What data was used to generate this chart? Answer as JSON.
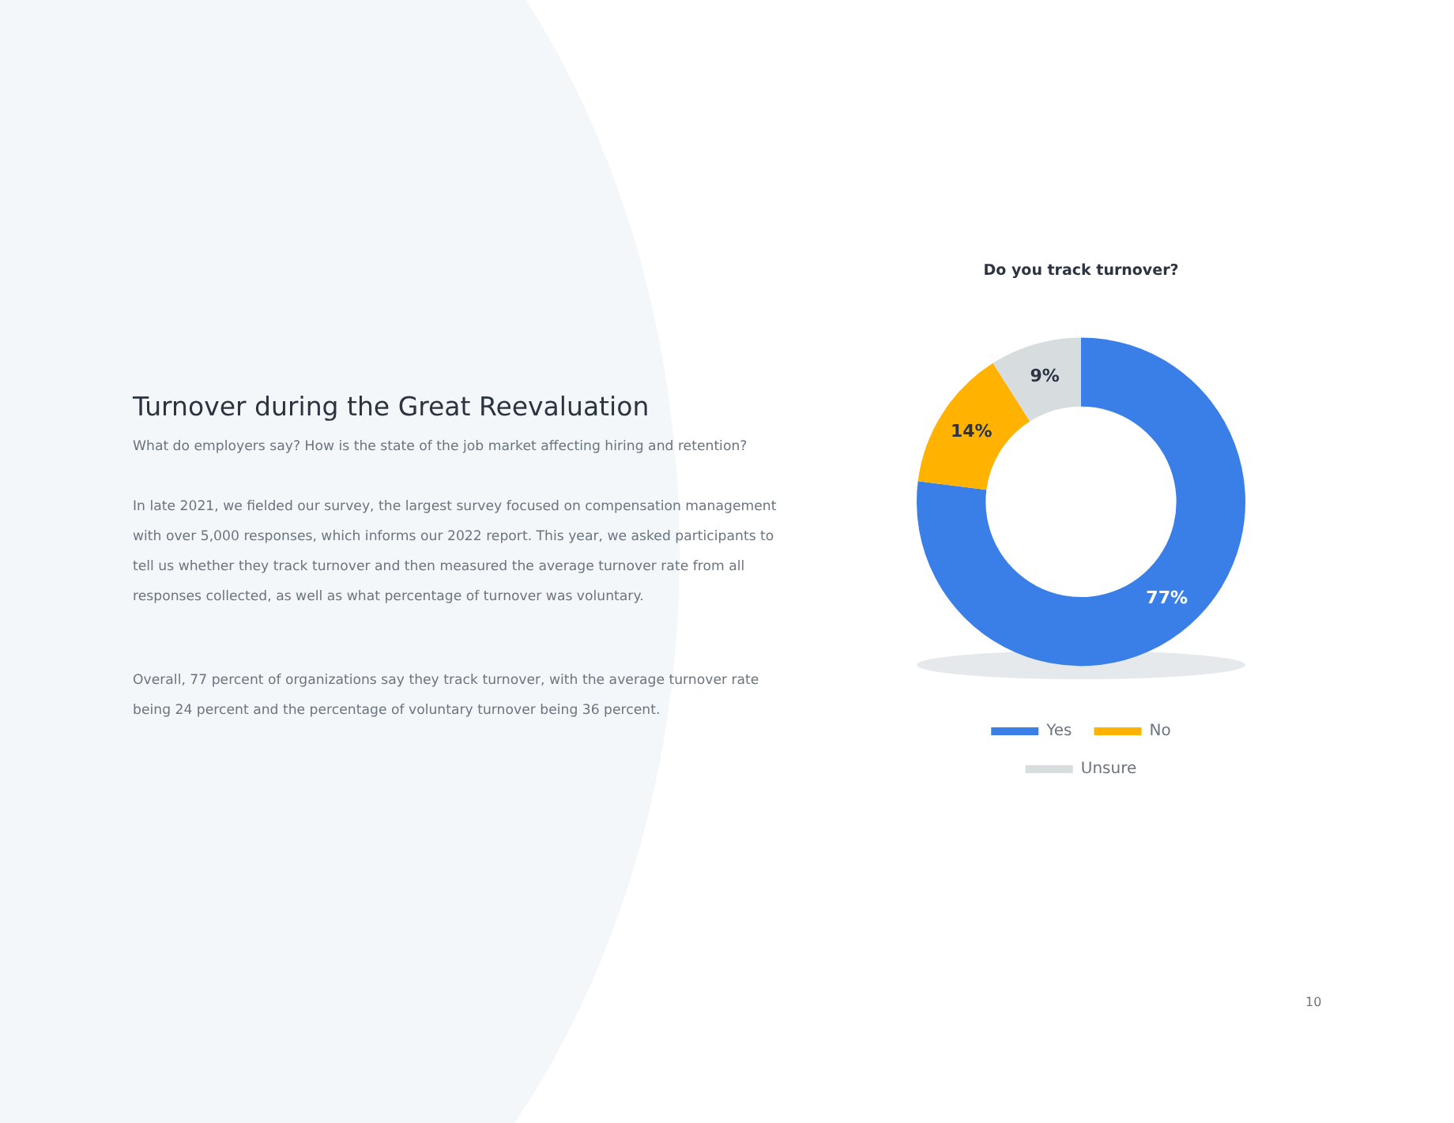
{
  "chart_data": {
    "type": "donut",
    "title": "Do you track turnover?",
    "categories": [
      "Yes",
      "No",
      "Unsure"
    ],
    "values": [
      77,
      14,
      9
    ],
    "colors": [
      "#3a7fe8",
      "#ffb300",
      "#d7dcdf"
    ],
    "value_labels": [
      "77%",
      "14%",
      "9%"
    ],
    "legend": "bottom",
    "annotations": [
      "Turnover during the Great Reevaluation",
      "What do employers say? How is the state of the job market affecting hiring and retention?",
      "In late 2021, we fielded our survey, the largest survey focused on compensation management with over 5,000 responses, which informs our 2022 report. This year, we asked participants to tell us whether they track turnover and then measured the average turnover rate from all responses collected, as well as what percentage of turnover was voluntary.",
      "Overall, 77 percent of organizations say they track turnover, with the average turnover rate being 24 percent and the percentage of voluntary turnover being 36 percent.",
      "10"
    ]
  }
}
